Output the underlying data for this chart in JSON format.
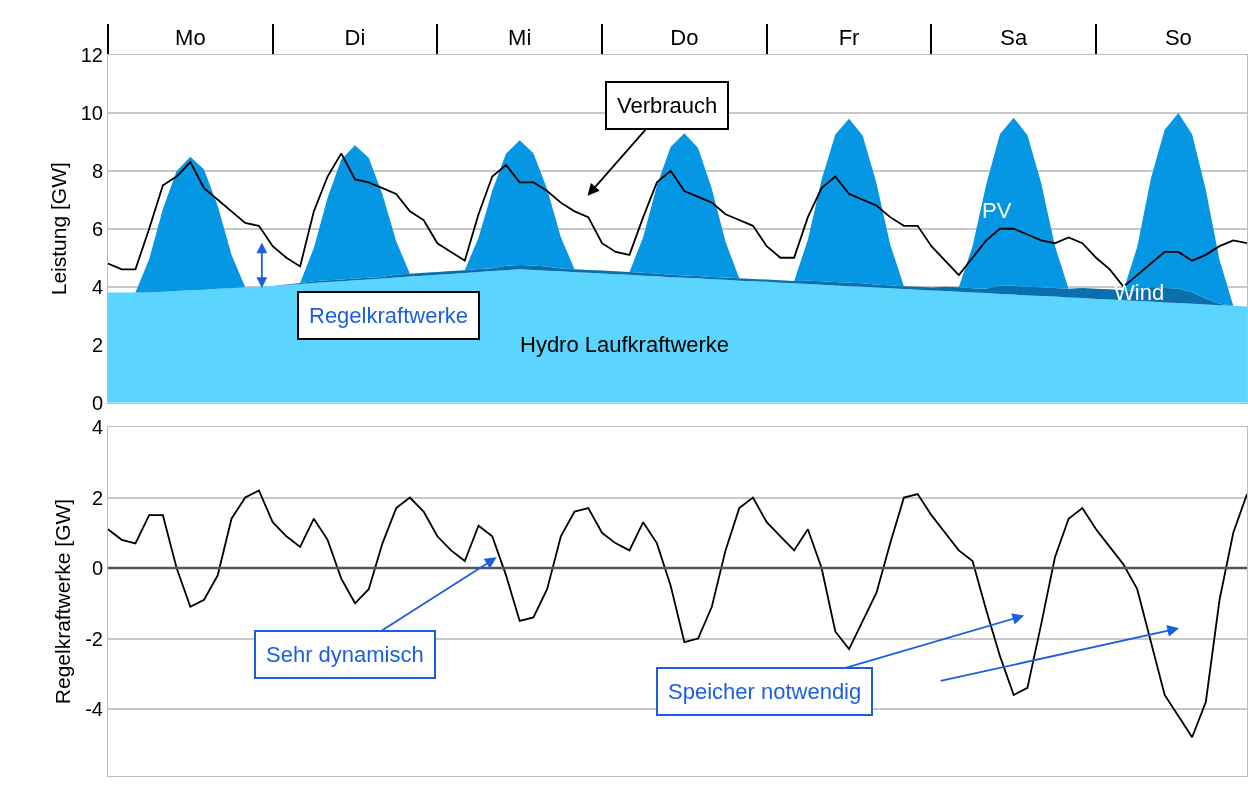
{
  "chart_data": [
    {
      "type": "area",
      "stacked": true,
      "ylabel": "Leistung [GW]",
      "ylim": [
        0,
        12
      ],
      "yticks": [
        0,
        2,
        4,
        6,
        8,
        10,
        12
      ],
      "grid": "y",
      "categories": [
        null,
        null,
        null,
        null,
        null,
        null,
        "Mo",
        null,
        null,
        null,
        null,
        null,
        null,
        null,
        null,
        null,
        null,
        null,
        "Di",
        null,
        null,
        null,
        null,
        null,
        null,
        null,
        null,
        null,
        null,
        null,
        "Mi",
        null,
        null,
        null,
        null,
        null,
        null,
        null,
        null,
        null,
        null,
        null,
        "Do",
        null,
        null,
        null,
        null,
        null,
        null,
        null,
        null,
        null,
        null,
        null,
        "Fr",
        null,
        null,
        null,
        null,
        null,
        null,
        null,
        null,
        null,
        null,
        null,
        "Sa",
        null,
        null,
        null,
        null,
        null,
        null,
        null,
        null,
        null,
        null,
        null,
        "So",
        null,
        null,
        null,
        null,
        null
      ],
      "series": [
        {
          "color": "#5bd5fe",
          "values": [
            3.8,
            3.8,
            3.8,
            3.8,
            3.83,
            3.85,
            3.88,
            3.9,
            3.93,
            3.95,
            3.98,
            4.0,
            4.03,
            4.06,
            4.09,
            4.13,
            4.16,
            4.19,
            4.22,
            4.25,
            4.28,
            4.32,
            4.35,
            4.38,
            4.41,
            4.44,
            4.47,
            4.51,
            4.54,
            4.57,
            4.6,
            4.58,
            4.55,
            4.53,
            4.5,
            4.48,
            4.46,
            4.43,
            4.41,
            4.38,
            4.36,
            4.33,
            4.31,
            4.29,
            4.26,
            4.24,
            4.21,
            4.19,
            4.17,
            4.14,
            4.12,
            4.09,
            4.07,
            4.04,
            4.02,
            4.0,
            3.97,
            3.95,
            3.92,
            3.9,
            3.87,
            3.85,
            3.83,
            3.8,
            3.78,
            3.75,
            3.73,
            3.7,
            3.68,
            3.66,
            3.63,
            3.61,
            3.58,
            3.56,
            3.53,
            3.51,
            3.49,
            3.46,
            3.44,
            3.41,
            3.39,
            3.36,
            3.34,
            3.32
          ]
        },
        {
          "color": "#0a6fae",
          "values": [
            0,
            0,
            0,
            0,
            0,
            0,
            0,
            0,
            0,
            0,
            0,
            0,
            0,
            0.02,
            0.04,
            0.06,
            0.06,
            0.06,
            0.06,
            0.06,
            0.06,
            0.1,
            0.1,
            0.1,
            0.1,
            0.1,
            0.1,
            0.1,
            0.1,
            0.15,
            0.15,
            0.15,
            0.15,
            0.1,
            0.1,
            0.1,
            0.1,
            0.1,
            0.1,
            0.1,
            0.1,
            0.08,
            0.08,
            0.08,
            0.08,
            0.08,
            0.08,
            0.08,
            0.08,
            0.08,
            0.08,
            0.12,
            0.12,
            0.12,
            0.12,
            0.12,
            0.1,
            0.1,
            0.1,
            0.1,
            0.1,
            0.15,
            0.15,
            0.15,
            0.15,
            0.3,
            0.3,
            0.3,
            0.3,
            0.3,
            0.3,
            0.35,
            0.35,
            0.35,
            0.35,
            0.35,
            0.5,
            0.5,
            0.5,
            0.4,
            0.2,
            0.05,
            0,
            0
          ]
        },
        {
          "color": "#0596e4",
          "values": [
            0,
            0,
            0,
            1.15,
            2.85,
            4.14,
            4.6,
            4.14,
            2.85,
            1.15,
            0,
            0,
            0,
            0,
            0,
            1.15,
            2.85,
            4.14,
            4.6,
            4.14,
            2.85,
            1.15,
            0,
            0,
            0,
            0,
            0,
            1.08,
            2.67,
            3.87,
            4.3,
            3.87,
            2.67,
            1.08,
            0,
            0,
            0,
            0,
            0,
            1.23,
            3.04,
            4.41,
            4.9,
            4.41,
            3.04,
            1.23,
            0,
            0,
            0,
            0,
            0,
            1.41,
            3.5,
            5.09,
            5.65,
            5.09,
            3.5,
            1.41,
            0,
            0,
            0,
            0,
            0,
            1.45,
            3.6,
            5.22,
            5.8,
            5.22,
            3.6,
            1.45,
            0,
            0,
            0,
            0,
            0,
            1.51,
            3.75,
            5.45,
            6.05,
            5.45,
            3.75,
            1.51,
            0,
            0
          ]
        },
        {
          "type": "line",
          "color": "#000000",
          "values": [
            4.8,
            4.6,
            4.6,
            6.0,
            7.5,
            7.8,
            8.3,
            7.4,
            7.0,
            6.6,
            6.2,
            6.1,
            5.4,
            5.0,
            4.7,
            6.6,
            7.8,
            8.6,
            7.7,
            7.6,
            7.4,
            7.2,
            6.6,
            6.3,
            5.5,
            5.2,
            4.9,
            6.5,
            7.8,
            8.2,
            7.6,
            7.6,
            7.3,
            6.9,
            6.6,
            6.4,
            5.5,
            5.2,
            5.1,
            6.4,
            7.6,
            8.0,
            7.3,
            7.1,
            6.9,
            6.5,
            6.3,
            6.1,
            5.4,
            5.0,
            5.0,
            6.4,
            7.4,
            7.8,
            7.2,
            7.0,
            6.8,
            6.4,
            6.1,
            6.1,
            5.4,
            4.9,
            4.4,
            5.0,
            5.6,
            6.0,
            6.0,
            5.8,
            5.6,
            5.5,
            5.7,
            5.5,
            5.0,
            4.6,
            4.0,
            4.4,
            4.8,
            5.2,
            5.2,
            4.9,
            5.1,
            5.4,
            5.6,
            5.5
          ]
        }
      ],
      "annotations": [
        "Verbrauch",
        "Regelkraftwerke",
        "Hydro Laufkraftwerke",
        "PV",
        "Wind"
      ]
    },
    {
      "type": "line",
      "ylabel": "Regelkraftwerke [GW]",
      "ylim": [
        -5.9,
        4
      ],
      "yticks": [
        -4,
        -2,
        0,
        2,
        4
      ],
      "grid": "y",
      "tick_labels": "y",
      "categories": [
        null,
        null,
        null,
        null,
        null,
        null,
        null,
        null,
        null,
        null,
        null,
        null,
        null,
        null,
        null,
        null,
        null,
        null,
        null,
        null,
        null,
        null,
        null,
        null,
        null,
        null,
        null,
        null,
        null,
        null,
        null,
        null,
        null,
        null,
        null,
        null,
        null,
        null,
        null,
        null,
        null,
        null,
        null,
        null,
        null,
        null,
        null,
        null,
        null,
        null,
        null,
        null,
        null,
        null,
        null,
        null,
        null,
        null,
        null,
        null,
        null,
        null,
        null,
        null,
        null,
        null,
        null,
        null,
        null,
        null,
        null,
        null,
        null,
        null,
        null,
        null,
        null,
        null,
        null,
        null,
        null,
        null,
        null,
        null
      ],
      "ref_lines": [
        {
          "axis": "y",
          "value": 0,
          "label": null,
          "color": "#555555"
        }
      ],
      "series": [
        {
          "color": "#000000",
          "values": [
            1.1,
            0.8,
            0.7,
            1.5,
            1.5,
            0.0,
            -1.1,
            -0.9,
            -0.2,
            1.4,
            2.0,
            2.2,
            1.3,
            0.9,
            0.6,
            1.4,
            0.8,
            -0.3,
            -1.0,
            -0.6,
            0.7,
            1.7,
            2.0,
            1.6,
            0.9,
            0.5,
            0.2,
            1.2,
            0.9,
            -0.2,
            -1.5,
            -1.4,
            -0.6,
            0.9,
            1.6,
            1.7,
            1.0,
            0.7,
            0.5,
            1.3,
            0.7,
            -0.5,
            -2.1,
            -2.0,
            -1.1,
            0.5,
            1.7,
            2.0,
            1.3,
            0.9,
            0.5,
            1.1,
            0.0,
            -1.8,
            -2.3,
            -1.5,
            -0.7,
            0.7,
            2.0,
            2.1,
            1.5,
            1.0,
            0.5,
            0.2,
            -1.2,
            -2.5,
            -3.6,
            -3.4,
            -1.6,
            0.3,
            1.4,
            1.7,
            1.1,
            0.6,
            0.1,
            -0.6,
            -2.1,
            -3.6,
            -4.2,
            -4.8,
            -3.8,
            -0.9,
            1.0,
            2.1
          ]
        }
      ],
      "annotations": [
        "Sehr dynamisch",
        "Speicher notwendig"
      ]
    }
  ]
}
